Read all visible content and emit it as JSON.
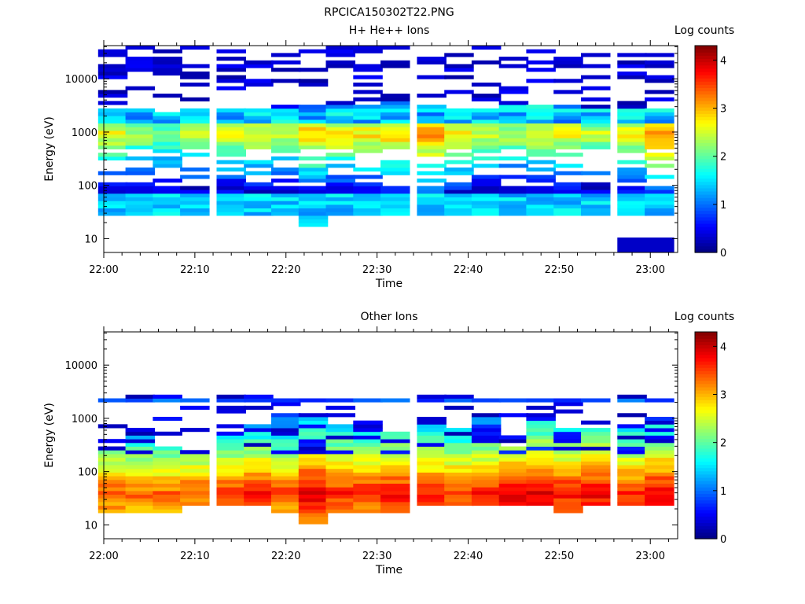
{
  "page_title": "RPCICA150302T22.PNG",
  "chart_data": [
    {
      "type": "heatmap",
      "title": "H+ He++ Ions",
      "xlabel": "Time",
      "ylabel": "Energy (eV)",
      "yscale": "log",
      "xlim": [
        "22:00",
        "23:03"
      ],
      "ylim": [
        5.5,
        42000
      ],
      "xticks": [
        "22:00",
        "22:10",
        "22:20",
        "22:30",
        "22:40",
        "22:50",
        "23:00"
      ],
      "yticks": [
        "10",
        "100",
        "1000",
        "10000"
      ],
      "colorbar": {
        "label": "Log counts",
        "range": [
          0,
          4.3
        ],
        "ticks": [
          "0",
          "1",
          "2",
          "3",
          "4"
        ],
        "colormap": "jet"
      },
      "time_bins": [
        "22:01",
        "22:04",
        "22:07",
        "22:10",
        "22:14",
        "22:17",
        "22:20",
        "22:23",
        "22:26",
        "22:29",
        "22:32",
        "22:36",
        "22:39",
        "22:42",
        "22:45",
        "22:48",
        "22:51",
        "22:54",
        "22:58",
        "23:01"
      ],
      "core_band_eV": [
        [
          27,
          2800
        ],
        [
          27,
          2600
        ],
        [
          27,
          2400
        ],
        [
          27,
          2600
        ],
        [
          27,
          2700
        ],
        [
          27,
          2900
        ],
        [
          27,
          2900
        ],
        [
          18,
          3100
        ],
        [
          27,
          3300
        ],
        [
          27,
          3300
        ],
        [
          27,
          3600
        ],
        [
          27,
          3100
        ],
        [
          27,
          2900
        ],
        [
          27,
          2900
        ],
        [
          27,
          3100
        ],
        [
          27,
          3300
        ],
        [
          27,
          3100
        ],
        [
          27,
          2900
        ],
        [
          27,
          2600
        ],
        [
          27,
          3000
        ]
      ],
      "peak_log_counts": [
        2.7,
        2.4,
        2.3,
        2.6,
        2.6,
        2.7,
        2.5,
        3.0,
        2.8,
        2.8,
        2.9,
        3.2,
        2.8,
        2.6,
        2.5,
        2.6,
        2.7,
        2.5,
        2.8,
        3.3
      ],
      "low_energy_extra": [
        {
          "time": "22:58",
          "energy_eV": [
            5.5,
            10.5
          ],
          "log_counts": 0.3
        },
        {
          "time": "23:01",
          "energy_eV": [
            5.5,
            10.5
          ],
          "log_counts": 0.3
        }
      ]
    },
    {
      "type": "heatmap",
      "title": "Other Ions",
      "xlabel": "Time",
      "ylabel": "Energy (eV)",
      "yscale": "log",
      "xlim": [
        "22:00",
        "23:03"
      ],
      "ylim": [
        5.5,
        42000
      ],
      "xticks": [
        "22:00",
        "22:10",
        "22:20",
        "22:30",
        "22:40",
        "22:50",
        "23:00"
      ],
      "yticks": [
        "10",
        "100",
        "1000",
        "10000"
      ],
      "colorbar": {
        "label": "Log counts",
        "range": [
          0,
          4.3
        ],
        "ticks": [
          "0",
          "1",
          "2",
          "3",
          "4"
        ],
        "colormap": "jet"
      },
      "time_bins": [
        "22:01",
        "22:04",
        "22:07",
        "22:10",
        "22:14",
        "22:17",
        "22:20",
        "22:23",
        "22:26",
        "22:29",
        "22:32",
        "22:36",
        "22:39",
        "22:42",
        "22:45",
        "22:48",
        "22:51",
        "22:54",
        "22:58",
        "23:01"
      ],
      "core_band_eV": [
        [
          18,
          300
        ],
        [
          18,
          450
        ],
        [
          18,
          280
        ],
        [
          22,
          220
        ],
        [
          22,
          600
        ],
        [
          22,
          800
        ],
        [
          18,
          1200
        ],
        [
          10,
          1200
        ],
        [
          18,
          800
        ],
        [
          18,
          700
        ],
        [
          18,
          600
        ],
        [
          22,
          1100
        ],
        [
          22,
          650
        ],
        [
          22,
          1100
        ],
        [
          22,
          300
        ],
        [
          22,
          1000
        ],
        [
          18,
          700
        ],
        [
          22,
          700
        ],
        [
          22,
          700
        ],
        [
          22,
          1100
        ]
      ],
      "peak_log_counts": [
        3.5,
        3.4,
        3.4,
        3.5,
        3.6,
        3.7,
        3.6,
        4.0,
        3.7,
        3.7,
        3.8,
        3.7,
        3.6,
        3.7,
        3.9,
        4.0,
        3.8,
        3.9,
        3.7,
        3.9
      ],
      "high_energy_line_eV": 2300
    }
  ]
}
